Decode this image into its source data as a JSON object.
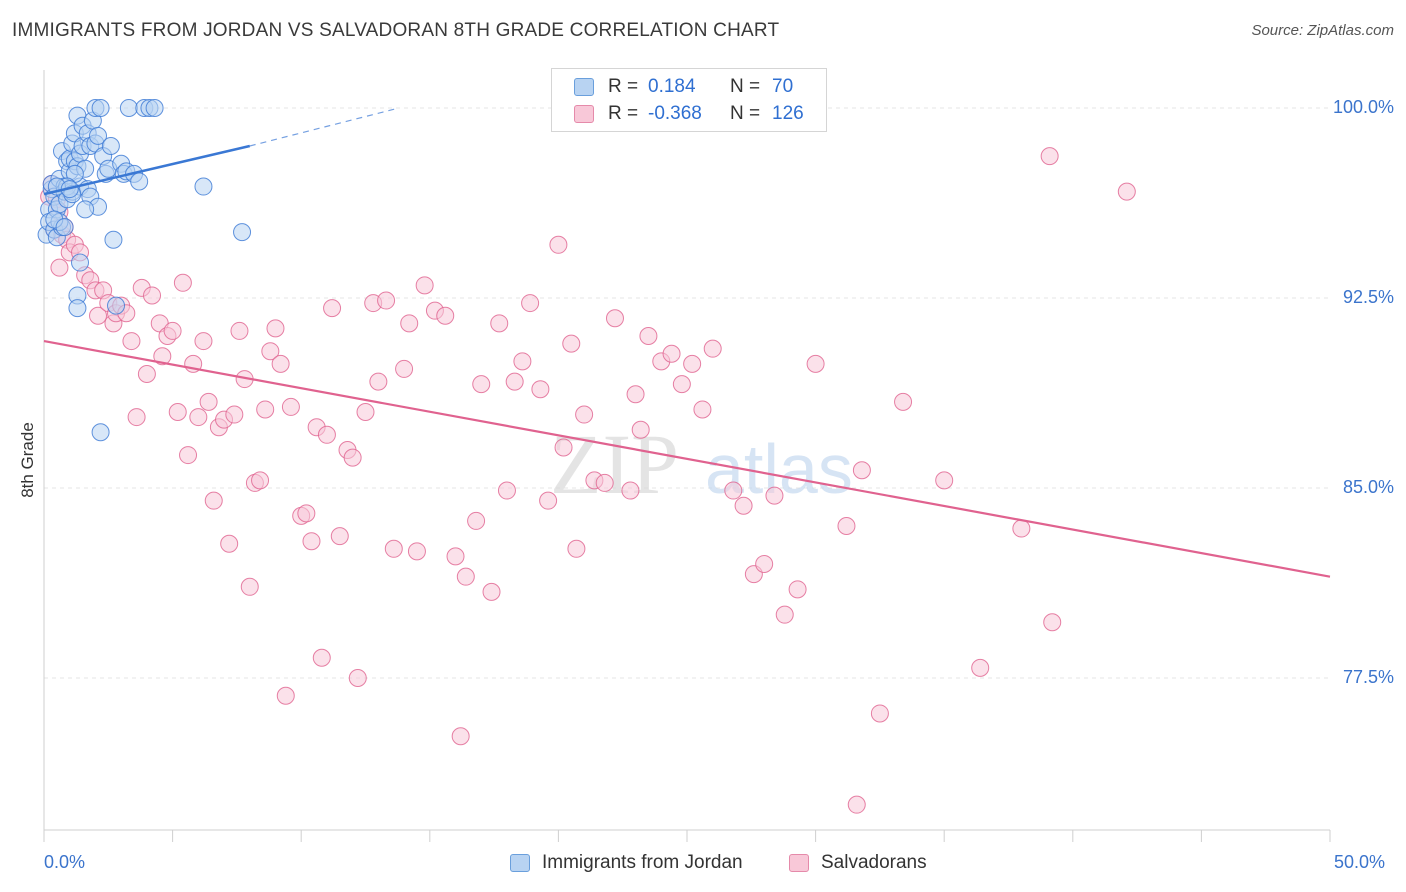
{
  "title": "IMMIGRANTS FROM JORDAN VS SALVADORAN 8TH GRADE CORRELATION CHART",
  "source": "Source: ZipAtlas.com",
  "watermark": {
    "zip": "ZIP",
    "atlas": "atlas"
  },
  "legend": {
    "r_label": "R =",
    "n_label": "N =",
    "rows": [
      {
        "r": "0.184",
        "n": "70",
        "color": "#6a9fdc"
      },
      {
        "r": "-0.368",
        "n": "126",
        "color": "#e58aaa"
      }
    ]
  },
  "bottom_legend": [
    "Immigrants from Jordan",
    "Salvadorans"
  ],
  "colors": {
    "blue": "#3a78d4",
    "blue_fill": "#b8d3f2",
    "pink": "#e0628f",
    "pink_fill": "#f8c8d8",
    "tick_text": "#3b74cc"
  },
  "chart_data": {
    "type": "scatter",
    "title": "IMMIGRANTS FROM JORDAN VS SALVADORAN 8TH GRADE CORRELATION CHART",
    "xlabel": "",
    "ylabel": "8th Grade",
    "xlim": [
      0,
      50
    ],
    "ylim": [
      71.5,
      101.5
    ],
    "x_tick_labels": [
      "0.0%",
      "50.0%"
    ],
    "y_ticks": [
      77.5,
      85.0,
      92.5,
      100.0
    ],
    "y_tick_labels": [
      "77.5%",
      "85.0%",
      "92.5%",
      "100.0%"
    ],
    "grid": true,
    "legend_position": "top-center",
    "series": [
      {
        "name": "Immigrants from Jordan",
        "R": 0.184,
        "N": 70,
        "trend": {
          "x": [
            0.0,
            8.0
          ],
          "y": [
            96.6,
            98.5
          ],
          "dashed_to": [
            13.8,
            100.0
          ]
        },
        "points": [
          [
            0.1,
            95.0
          ],
          [
            0.2,
            96.0
          ],
          [
            0.2,
            95.5
          ],
          [
            0.3,
            96.8
          ],
          [
            0.3,
            97.0
          ],
          [
            0.4,
            96.5
          ],
          [
            0.4,
            95.2
          ],
          [
            0.5,
            96.0
          ],
          [
            0.5,
            94.9
          ],
          [
            0.6,
            96.2
          ],
          [
            0.6,
            97.2
          ],
          [
            0.7,
            98.3
          ],
          [
            0.7,
            95.3
          ],
          [
            0.8,
            96.9
          ],
          [
            0.8,
            96.7
          ],
          [
            0.9,
            97.9
          ],
          [
            0.9,
            96.4
          ],
          [
            1.0,
            97.5
          ],
          [
            1.0,
            98.0
          ],
          [
            1.1,
            98.6
          ],
          [
            1.1,
            96.7
          ],
          [
            1.2,
            97.9
          ],
          [
            1.2,
            99.0
          ],
          [
            1.3,
            99.7
          ],
          [
            1.3,
            97.7
          ],
          [
            1.4,
            96.9
          ],
          [
            1.4,
            98.2
          ],
          [
            1.5,
            99.3
          ],
          [
            1.5,
            98.5
          ],
          [
            1.6,
            97.6
          ],
          [
            1.7,
            99.0
          ],
          [
            1.7,
            96.8
          ],
          [
            1.8,
            98.5
          ],
          [
            1.8,
            96.5
          ],
          [
            1.9,
            99.5
          ],
          [
            2.0,
            98.6
          ],
          [
            2.0,
            100.0
          ],
          [
            2.1,
            98.9
          ],
          [
            2.1,
            96.1
          ],
          [
            2.2,
            100.0
          ],
          [
            2.3,
            98.1
          ],
          [
            2.4,
            97.4
          ],
          [
            2.5,
            97.6
          ],
          [
            2.6,
            98.5
          ],
          [
            2.7,
            94.8
          ],
          [
            2.8,
            92.2
          ],
          [
            3.0,
            97.8
          ],
          [
            3.1,
            97.4
          ],
          [
            3.2,
            97.5
          ],
          [
            3.3,
            100.0
          ],
          [
            3.5,
            97.4
          ],
          [
            3.7,
            97.1
          ],
          [
            3.9,
            100.0
          ],
          [
            4.1,
            100.0
          ],
          [
            4.3,
            100.0
          ],
          [
            6.2,
            96.9
          ],
          [
            7.7,
            95.1
          ],
          [
            1.4,
            93.9
          ],
          [
            1.3,
            92.6
          ],
          [
            1.3,
            92.1
          ],
          [
            2.2,
            87.2
          ],
          [
            1.2,
            97.4
          ],
          [
            0.9,
            96.9
          ],
          [
            0.6,
            95.5
          ],
          [
            0.4,
            95.6
          ],
          [
            0.5,
            96.9
          ],
          [
            1.1,
            96.6
          ],
          [
            1.6,
            96.0
          ],
          [
            0.8,
            95.3
          ],
          [
            1.0,
            96.8
          ]
        ]
      },
      {
        "name": "Salvadorans",
        "R": -0.368,
        "N": 126,
        "trend": {
          "x": [
            0.0,
            50.0
          ],
          "y": [
            90.8,
            81.5
          ]
        },
        "points": [
          [
            0.2,
            96.5
          ],
          [
            0.3,
            97.0
          ],
          [
            0.4,
            95.2
          ],
          [
            0.5,
            96.4
          ],
          [
            0.6,
            95.9
          ],
          [
            0.7,
            95.0
          ],
          [
            0.8,
            95.3
          ],
          [
            0.9,
            94.8
          ],
          [
            1.0,
            94.3
          ],
          [
            1.2,
            94.6
          ],
          [
            1.4,
            94.3
          ],
          [
            1.6,
            93.4
          ],
          [
            1.8,
            93.2
          ],
          [
            2.0,
            92.8
          ],
          [
            2.1,
            91.8
          ],
          [
            2.3,
            92.8
          ],
          [
            2.5,
            92.3
          ],
          [
            2.7,
            91.5
          ],
          [
            2.8,
            91.9
          ],
          [
            3.0,
            92.2
          ],
          [
            3.2,
            91.9
          ],
          [
            3.4,
            90.8
          ],
          [
            3.6,
            87.8
          ],
          [
            3.8,
            92.9
          ],
          [
            4.0,
            89.5
          ],
          [
            4.2,
            92.6
          ],
          [
            4.5,
            91.5
          ],
          [
            4.6,
            90.2
          ],
          [
            4.8,
            91.0
          ],
          [
            5.0,
            91.2
          ],
          [
            5.2,
            88.0
          ],
          [
            5.4,
            93.1
          ],
          [
            5.6,
            86.3
          ],
          [
            5.8,
            89.9
          ],
          [
            6.0,
            87.8
          ],
          [
            6.2,
            90.8
          ],
          [
            6.4,
            88.4
          ],
          [
            6.6,
            84.5
          ],
          [
            6.8,
            87.4
          ],
          [
            7.0,
            87.7
          ],
          [
            7.2,
            82.8
          ],
          [
            7.4,
            87.9
          ],
          [
            7.6,
            91.2
          ],
          [
            7.8,
            89.3
          ],
          [
            8.0,
            81.1
          ],
          [
            8.2,
            85.2
          ],
          [
            8.4,
            85.3
          ],
          [
            8.6,
            88.1
          ],
          [
            8.8,
            90.4
          ],
          [
            9.0,
            91.3
          ],
          [
            9.2,
            89.9
          ],
          [
            9.4,
            76.8
          ],
          [
            9.6,
            88.2
          ],
          [
            10.0,
            83.9
          ],
          [
            10.2,
            84.0
          ],
          [
            10.4,
            82.9
          ],
          [
            10.6,
            87.4
          ],
          [
            10.8,
            78.3
          ],
          [
            11.0,
            87.1
          ],
          [
            11.2,
            92.1
          ],
          [
            11.5,
            83.1
          ],
          [
            11.8,
            86.5
          ],
          [
            12.0,
            86.2
          ],
          [
            12.2,
            77.5
          ],
          [
            12.5,
            88.0
          ],
          [
            12.8,
            92.3
          ],
          [
            13.0,
            89.2
          ],
          [
            13.3,
            92.4
          ],
          [
            13.6,
            82.6
          ],
          [
            14.0,
            89.7
          ],
          [
            14.2,
            91.5
          ],
          [
            14.5,
            82.5
          ],
          [
            14.8,
            93.0
          ],
          [
            15.2,
            92.0
          ],
          [
            15.6,
            91.8
          ],
          [
            16.0,
            82.3
          ],
          [
            16.2,
            75.2
          ],
          [
            16.4,
            81.5
          ],
          [
            16.8,
            83.7
          ],
          [
            17.0,
            89.1
          ],
          [
            17.4,
            80.9
          ],
          [
            17.7,
            91.5
          ],
          [
            18.0,
            84.9
          ],
          [
            18.3,
            89.2
          ],
          [
            18.6,
            90.0
          ],
          [
            18.9,
            92.3
          ],
          [
            19.3,
            88.9
          ],
          [
            19.6,
            84.5
          ],
          [
            20.0,
            94.6
          ],
          [
            20.2,
            86.6
          ],
          [
            20.5,
            90.7
          ],
          [
            20.7,
            82.6
          ],
          [
            21.0,
            87.9
          ],
          [
            21.4,
            85.3
          ],
          [
            21.8,
            85.2
          ],
          [
            22.2,
            91.7
          ],
          [
            22.8,
            84.9
          ],
          [
            23.0,
            88.7
          ],
          [
            23.2,
            87.3
          ],
          [
            23.5,
            91.0
          ],
          [
            24.0,
            90.0
          ],
          [
            24.4,
            90.3
          ],
          [
            24.8,
            89.1
          ],
          [
            25.2,
            89.9
          ],
          [
            25.6,
            88.1
          ],
          [
            26.0,
            90.5
          ],
          [
            26.8,
            84.9
          ],
          [
            27.2,
            84.3
          ],
          [
            27.6,
            81.6
          ],
          [
            28.0,
            82.0
          ],
          [
            28.4,
            84.7
          ],
          [
            28.8,
            80.0
          ],
          [
            29.3,
            81.0
          ],
          [
            30.0,
            89.9
          ],
          [
            31.2,
            83.5
          ],
          [
            31.6,
            72.5
          ],
          [
            31.8,
            85.7
          ],
          [
            32.5,
            76.1
          ],
          [
            33.4,
            88.4
          ],
          [
            35.0,
            85.3
          ],
          [
            36.4,
            77.9
          ],
          [
            38.0,
            83.4
          ],
          [
            39.1,
            98.1
          ],
          [
            39.2,
            79.7
          ],
          [
            42.1,
            96.7
          ],
          [
            0.6,
            93.7
          ]
        ]
      }
    ]
  }
}
